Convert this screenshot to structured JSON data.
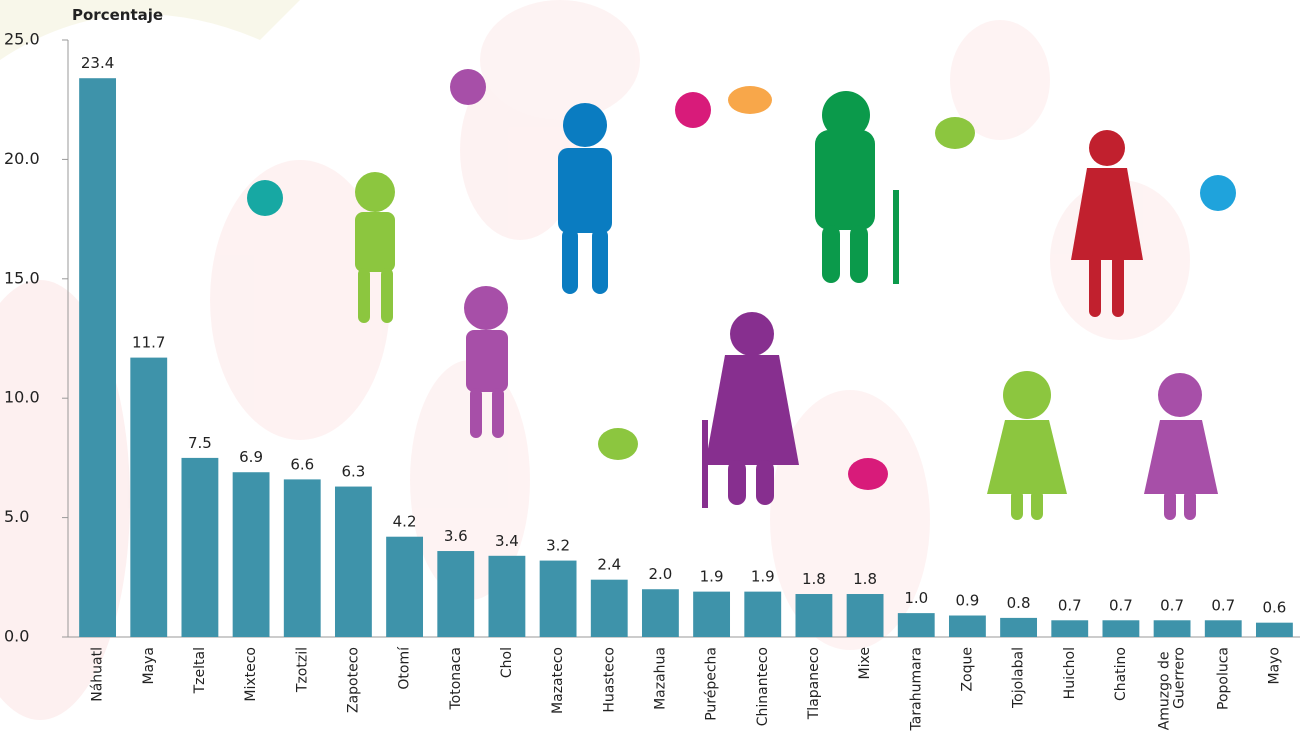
{
  "chart_data": {
    "type": "bar",
    "title": "Porcentaje",
    "categories": [
      "Náhuatl",
      "Maya",
      "Tzeltal",
      "Mixteco",
      "Tzotzil",
      "Zapoteco",
      "Otomí",
      "Totonaca",
      "Chol",
      "Mazateco",
      "Huasteco",
      "Mazahua",
      "Purépecha",
      "Chinanteco",
      "Tlapaneco",
      "Mixe",
      "Tarahumara",
      "Zoque",
      "Tojolabal",
      "Huichol",
      "Chatino",
      "Amuzgo de Guerrero",
      "Popoluca",
      "Mayo"
    ],
    "values": [
      23.4,
      11.7,
      7.5,
      6.9,
      6.6,
      6.3,
      4.2,
      3.6,
      3.4,
      3.2,
      2.4,
      2.0,
      1.9,
      1.9,
      1.8,
      1.8,
      1.0,
      0.9,
      0.8,
      0.7,
      0.7,
      0.7,
      0.7,
      0.6
    ],
    "value_labels": [
      "23.4",
      "11.7",
      "7.5",
      "6.9",
      "6.6",
      "6.3",
      "4.2",
      "3.6",
      "3.4",
      "3.2",
      "2.4",
      "2.0",
      "1.9",
      "1.9",
      "1.8",
      "1.8",
      "1.0",
      "0.9",
      "0.8",
      "0.7",
      "0.7",
      "0.7",
      "0.7",
      "0.6"
    ],
    "color": "#3e93aa",
    "ylim": [
      0,
      25
    ],
    "yticks": [
      {
        "value": 0,
        "label": "0.0"
      },
      {
        "value": 5,
        "label": "5.0"
      },
      {
        "value": 10,
        "label": "10.0"
      },
      {
        "value": 15,
        "label": "15.0"
      },
      {
        "value": 20,
        "label": "20.0"
      },
      {
        "value": 25,
        "label": "25.0"
      }
    ]
  }
}
